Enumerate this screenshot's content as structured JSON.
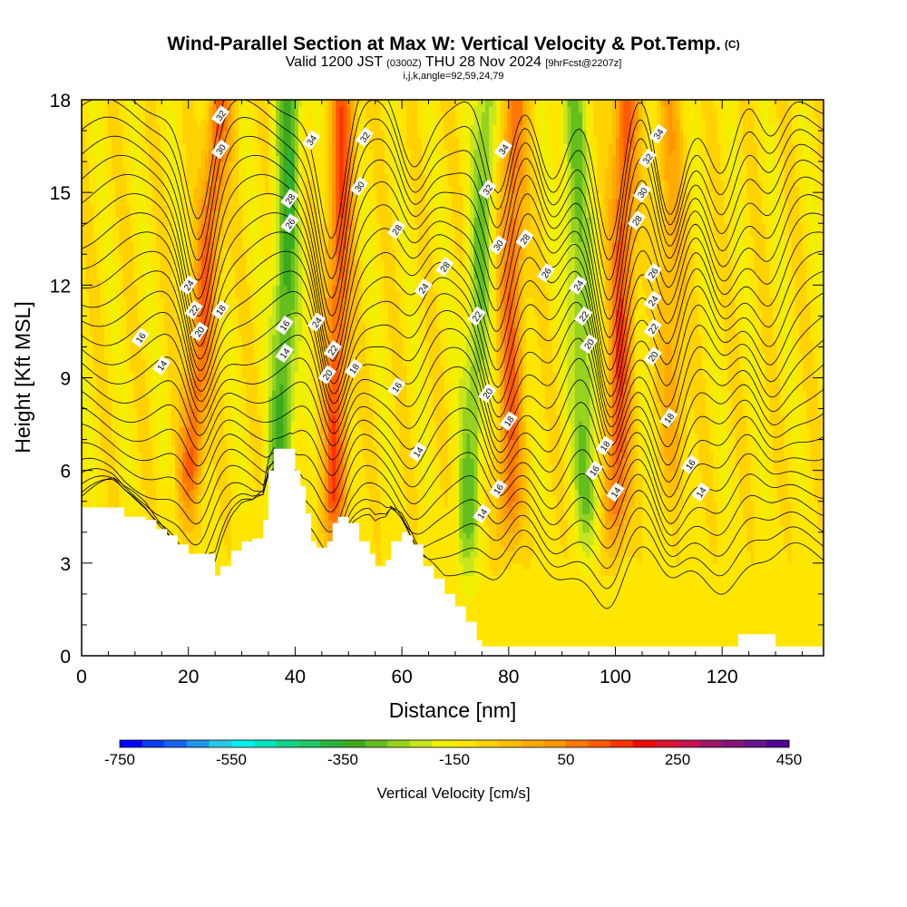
{
  "title": {
    "main": "Wind-Parallel Section at Max W: Vertical Velocity & Pot.Temp.",
    "copyright": "(C)",
    "valid_prefix": "Valid 1200 JST",
    "valid_utc": "(0300Z)",
    "valid_date": "THU 28 Nov 2024",
    "forecast": "[9hrFcst@2207z]",
    "params": "i,j,k,angle=92,59,24,79"
  },
  "chart_data": {
    "type": "heatmap",
    "xlabel": "Distance [nm]",
    "ylabel": "Height [Kft MSL]",
    "xlim": [
      0,
      139
    ],
    "ylim": [
      0,
      18
    ],
    "x_ticks": [
      0,
      20,
      40,
      60,
      80,
      100,
      120
    ],
    "y_ticks": [
      0,
      3,
      6,
      9,
      12,
      15,
      18
    ],
    "colorbar": {
      "label": "Vertical Velocity [cm/s]",
      "min": -750,
      "max": 450,
      "step": 50,
      "tick_labels": [
        "-750",
        "-550",
        "-350",
        "-150",
        "50",
        "250",
        "450"
      ],
      "tick_values": [
        -750,
        -550,
        -350,
        -150,
        50,
        250,
        450
      ],
      "colors": [
        "#0000ff",
        "#0a3cf5",
        "#1464f0",
        "#1e96eb",
        "#28c8e6",
        "#00f0f0",
        "#00e6c0",
        "#14d28c",
        "#1ec864",
        "#28b43c",
        "#3caa1e",
        "#64be1e",
        "#96d21e",
        "#c8e61e",
        "#f0f000",
        "#ffe600",
        "#ffd200",
        "#ffbe00",
        "#ffaa00",
        "#ff9600",
        "#ff7800",
        "#ff5a00",
        "#ff3200",
        "#f00a0a",
        "#dc1432",
        "#c81450",
        "#a01464",
        "#821478",
        "#64148c",
        "#500096"
      ]
    },
    "terrain_kft": [
      [
        0,
        4.8
      ],
      [
        6,
        4.8
      ],
      [
        8,
        4.5
      ],
      [
        12,
        4.4
      ],
      [
        14,
        4.1
      ],
      [
        16,
        3.9
      ],
      [
        18,
        3.6
      ],
      [
        20,
        3.3
      ],
      [
        24,
        3.3
      ],
      [
        25,
        2.6
      ],
      [
        26,
        2.9
      ],
      [
        28,
        3.4
      ],
      [
        30,
        3.7
      ],
      [
        32,
        3.8
      ],
      [
        34,
        4.4
      ],
      [
        35,
        6.0
      ],
      [
        36,
        6.7
      ],
      [
        39,
        6.7
      ],
      [
        40,
        6.0
      ],
      [
        41,
        5.5
      ],
      [
        42,
        4.6
      ],
      [
        43,
        3.7
      ],
      [
        44,
        3.5
      ],
      [
        46,
        3.7
      ],
      [
        47,
        4.3
      ],
      [
        48,
        4.5
      ],
      [
        50,
        4.3
      ],
      [
        52,
        3.7
      ],
      [
        54,
        3.3
      ],
      [
        55,
        2.9
      ],
      [
        57,
        3.1
      ],
      [
        58,
        3.7
      ],
      [
        60,
        4.0
      ],
      [
        61,
        3.9
      ],
      [
        62,
        3.6
      ],
      [
        64,
        2.9
      ],
      [
        66,
        2.5
      ],
      [
        68,
        2.0
      ],
      [
        70,
        1.6
      ],
      [
        72,
        1.1
      ],
      [
        74,
        0.5
      ],
      [
        75,
        0.3
      ],
      [
        84,
        0.3
      ],
      [
        122,
        0.3
      ],
      [
        123,
        0.7
      ],
      [
        129,
        0.7
      ],
      [
        130,
        0.3
      ],
      [
        139,
        0.3
      ]
    ],
    "vertical_velocity": {
      "background_cm_s": 30,
      "features": [
        {
          "x_bottom": 20,
          "x_top": 26,
          "z_bottom": 5,
          "w": 270
        },
        {
          "x_bottom": 37,
          "x_top": 39,
          "z_bottom": 3.5,
          "w": -250
        },
        {
          "x_bottom": 47,
          "x_top": 49,
          "z_bottom": 4,
          "w": 300
        },
        {
          "x_bottom": 72,
          "x_top": 76,
          "z_bottom": 3,
          "w": -180
        },
        {
          "x_bottom": 80,
          "x_top": 81,
          "z_bottom": 4,
          "w": 260
        },
        {
          "x_bottom": 95,
          "x_top": 92,
          "z_bottom": 4,
          "w": -200
        },
        {
          "x_bottom": 100,
          "x_top": 102,
          "z_bottom": 4,
          "w": 300
        },
        {
          "x_bottom": 111,
          "x_top": 110,
          "z_bottom": 6,
          "w": 150
        }
      ]
    },
    "potential_temperature": {
      "unit": "C",
      "contour_step": 1,
      "labels": [
        {
          "value": 32,
          "x": 26,
          "z": 17.5
        },
        {
          "value": 30,
          "x": 26,
          "z": 16.4
        },
        {
          "value": 24,
          "x": 20,
          "z": 12
        },
        {
          "value": 22,
          "x": 21,
          "z": 11.2
        },
        {
          "value": 18,
          "x": 26,
          "z": 11.2
        },
        {
          "value": 16,
          "x": 11,
          "z": 10.3
        },
        {
          "value": 20,
          "x": 22,
          "z": 10.5
        },
        {
          "value": 14,
          "x": 15,
          "z": 9.4
        },
        {
          "value": 34,
          "x": 43,
          "z": 16.7
        },
        {
          "value": 28,
          "x": 39,
          "z": 14.8
        },
        {
          "value": 26,
          "x": 39,
          "z": 14
        },
        {
          "value": 16,
          "x": 38,
          "z": 10.7
        },
        {
          "value": 14,
          "x": 38,
          "z": 9.8
        },
        {
          "value": 24,
          "x": 44,
          "z": 10.8
        },
        {
          "value": 22,
          "x": 47,
          "z": 9.9
        },
        {
          "value": 20,
          "x": 46,
          "z": 9.1
        },
        {
          "value": 18,
          "x": 51,
          "z": 9.3
        },
        {
          "value": 32,
          "x": 53,
          "z": 16.8
        },
        {
          "value": 30,
          "x": 52,
          "z": 15.2
        },
        {
          "value": 28,
          "x": 59,
          "z": 13.8
        },
        {
          "value": 28,
          "x": 68,
          "z": 12.6
        },
        {
          "value": 24,
          "x": 64,
          "z": 11.9
        },
        {
          "value": 16,
          "x": 59,
          "z": 8.7
        },
        {
          "value": 14,
          "x": 63,
          "z": 6.6
        },
        {
          "value": 34,
          "x": 79,
          "z": 16.4
        },
        {
          "value": 32,
          "x": 76,
          "z": 15.1
        },
        {
          "value": 30,
          "x": 78,
          "z": 13.3
        },
        {
          "value": 28,
          "x": 83,
          "z": 13.5
        },
        {
          "value": 26,
          "x": 87,
          "z": 12.4
        },
        {
          "value": 22,
          "x": 74,
          "z": 11
        },
        {
          "value": 20,
          "x": 76,
          "z": 8.5
        },
        {
          "value": 18,
          "x": 80,
          "z": 7.6
        },
        {
          "value": 16,
          "x": 78,
          "z": 5.4
        },
        {
          "value": 14,
          "x": 75,
          "z": 4.6
        },
        {
          "value": 24,
          "x": 93,
          "z": 12
        },
        {
          "value": 22,
          "x": 94,
          "z": 11
        },
        {
          "value": 20,
          "x": 95,
          "z": 10.1
        },
        {
          "value": 18,
          "x": 98,
          "z": 6.8
        },
        {
          "value": 16,
          "x": 96,
          "z": 6
        },
        {
          "value": 14,
          "x": 100,
          "z": 5.3
        },
        {
          "value": 34,
          "x": 108,
          "z": 16.9
        },
        {
          "value": 32,
          "x": 106,
          "z": 16.1
        },
        {
          "value": 30,
          "x": 105,
          "z": 15
        },
        {
          "value": 28,
          "x": 104,
          "z": 14.1
        },
        {
          "value": 26,
          "x": 107,
          "z": 12.4
        },
        {
          "value": 24,
          "x": 107,
          "z": 11.5
        },
        {
          "value": 22,
          "x": 107,
          "z": 10.6
        },
        {
          "value": 20,
          "x": 107,
          "z": 9.7
        },
        {
          "value": 18,
          "x": 110,
          "z": 7.7
        },
        {
          "value": 16,
          "x": 114,
          "z": 6.2
        },
        {
          "value": 14,
          "x": 116,
          "z": 5.3
        }
      ]
    }
  }
}
